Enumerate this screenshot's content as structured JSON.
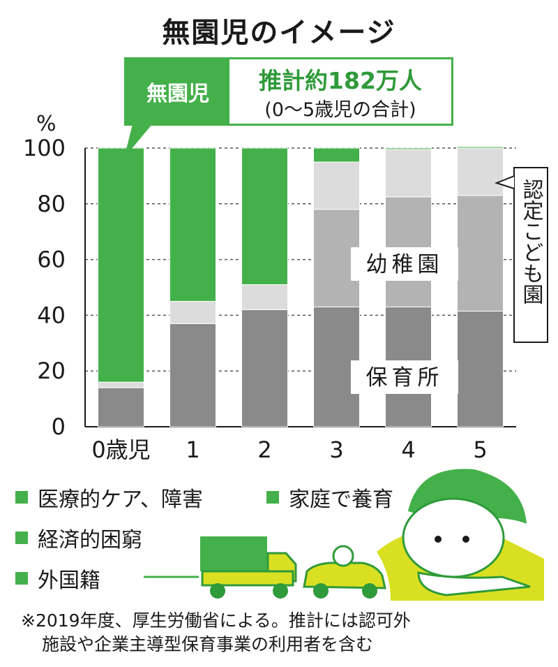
{
  "title": "無園児のイメージ",
  "callout": {
    "label": "無園児",
    "estimate": "推計約182万人",
    "note": "(0～5歳児の合計)"
  },
  "colors": {
    "green": "#44b04a",
    "light_gray": "#dcdcdc",
    "mid_gray": "#b3b3b3",
    "dark_gray": "#8a8a8a",
    "yellow": "#d9e021"
  },
  "chart_data": {
    "type": "bar",
    "stacked": true,
    "ylabel": "%",
    "ylim": [
      0,
      100
    ],
    "yticks": [
      0,
      20,
      40,
      60,
      80,
      100
    ],
    "categories": [
      "0歳児",
      "1",
      "2",
      "3",
      "4",
      "5"
    ],
    "series": [
      {
        "name": "保育所",
        "values": [
          14,
          37,
          42,
          43,
          43,
          41.5
        ]
      },
      {
        "name": "幼稚園",
        "values": [
          0,
          0,
          0,
          35,
          39.5,
          41.5
        ]
      },
      {
        "name": "認定こども園",
        "values": [
          2,
          8,
          9,
          17,
          17,
          17
        ]
      },
      {
        "name": "無園児",
        "values": [
          84,
          55,
          49,
          5,
          0.5,
          0.5
        ]
      }
    ],
    "annotations": [
      "幼稚園",
      "保育所",
      "認定こども園"
    ]
  },
  "legend": [
    "医療的ケア、障害",
    "家庭で養育",
    "経済的困窮",
    "外国籍"
  ],
  "footnote": {
    "line1": "※2019年度、厚生労働省による。推計には認可外",
    "line2": "施設や企業主導型保育事業の利用者を含む"
  }
}
